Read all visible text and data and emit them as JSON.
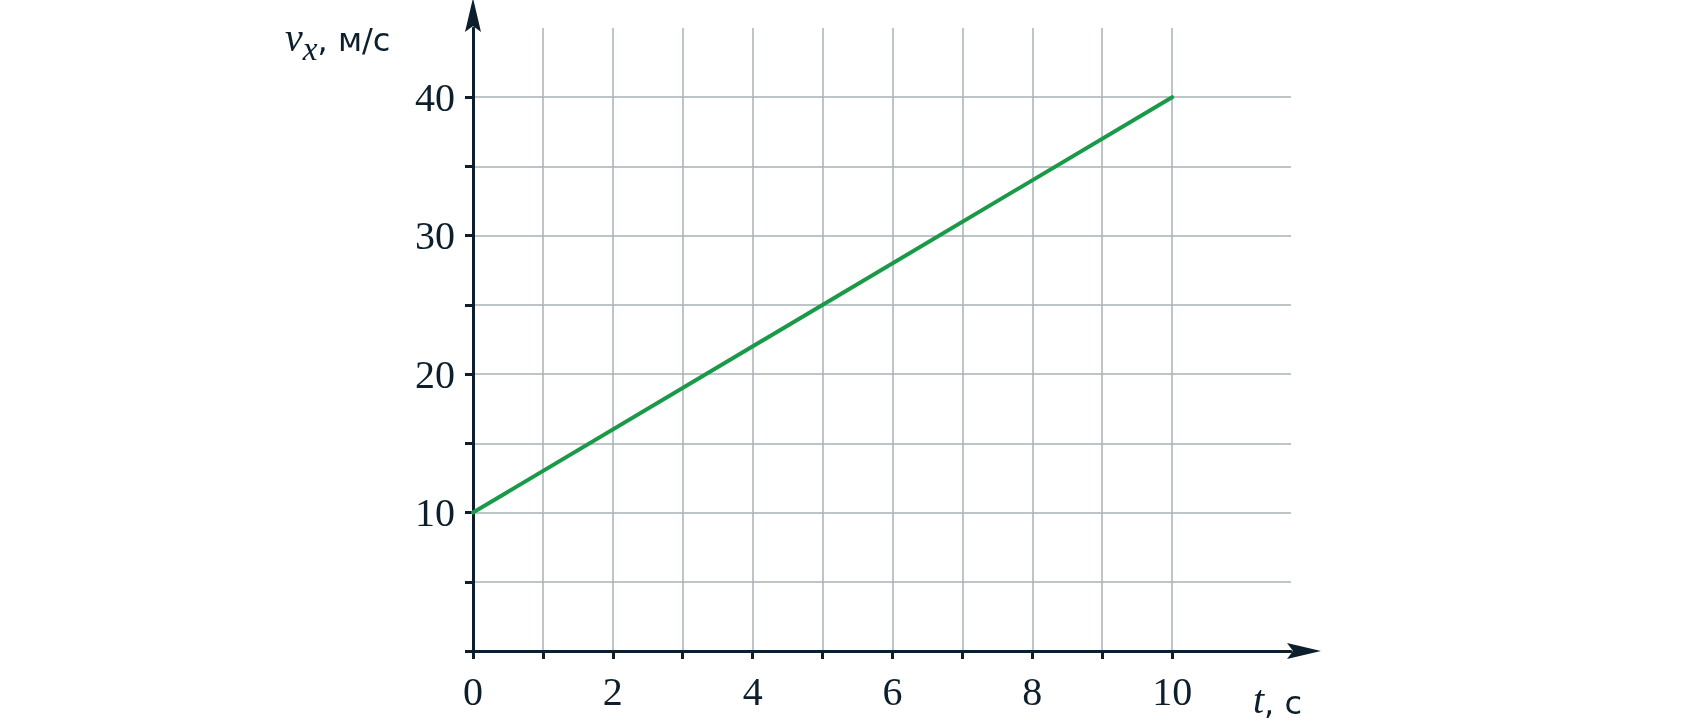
{
  "chart_data": {
    "type": "line",
    "xlabel": "t, с",
    "ylabel": "v$_{x}$, м/с",
    "x": [
      0,
      10
    ],
    "series": [
      {
        "color": "#1a9a48",
        "values": [
          10,
          40
        ]
      }
    ],
    "xlim": [
      0,
      11.7
    ],
    "ylim": [
      0,
      45
    ],
    "xticks": [
      0,
      {
        "value": 1,
        "label": null
      },
      2,
      {
        "value": 3,
        "label": null
      },
      4,
      {
        "value": 5,
        "label": null
      },
      6,
      {
        "value": 7,
        "label": null
      },
      8,
      {
        "value": 9,
        "label": null
      },
      10
    ],
    "yticks": [
      {
        "value": 0,
        "label": null
      },
      {
        "value": 5,
        "label": null
      },
      10,
      {
        "value": 15,
        "label": null
      },
      20,
      {
        "value": 25,
        "label": null
      },
      30,
      {
        "value": 35,
        "label": null
      },
      40
    ],
    "grid": true,
    "marker": "none",
    "line_style": "solid"
  }
}
